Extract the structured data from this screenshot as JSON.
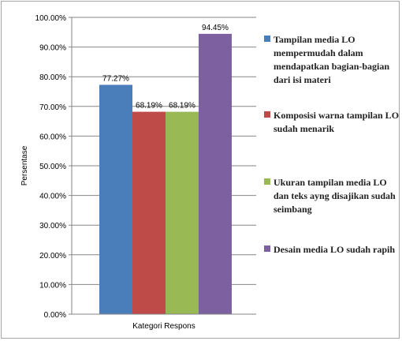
{
  "chart_data": {
    "type": "bar",
    "xlabel": "Kategori Respons",
    "ylabel": "Persentase",
    "ylim": [
      0,
      100
    ],
    "ytick_step": 10,
    "ytick_labels": [
      "0.00%",
      "10.00%",
      "20.00%",
      "30.00%",
      "40.00%",
      "50.00%",
      "60.00%",
      "70.00%",
      "80.00%",
      "90.00%",
      "100.00%"
    ],
    "grid": true,
    "legend_position": "right",
    "series": [
      {
        "name": "Tampilan media LO mempermudah dalam mendapatkan bagian-bagian dari isi materi",
        "value": 77.27,
        "label": "77.27%",
        "color": "#4a7ebb"
      },
      {
        "name": "Komposisi warna tampilan LO sudah menarik",
        "value": 68.19,
        "label": "68.19%",
        "color": "#be4b48"
      },
      {
        "name": "Ukuran tampilan media LO dan teks ayng disajikan sudah seimbang",
        "value": 68.19,
        "label": "68.19%",
        "color": "#98b954"
      },
      {
        "name": "Desain media LO sudah rapih",
        "value": 94.45,
        "label": "94.45%",
        "color": "#7d60a0"
      }
    ]
  }
}
